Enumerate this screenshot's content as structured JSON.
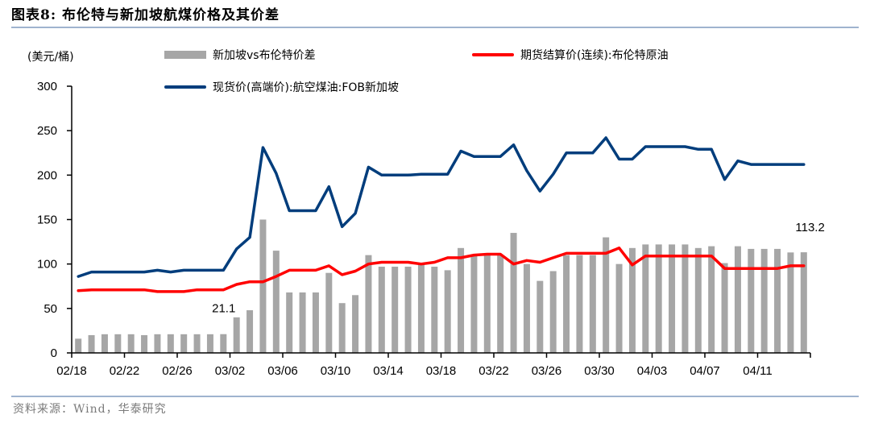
{
  "header": {
    "title": "图表8:  布伦特与新加坡航煤价格及其价差"
  },
  "footer": {
    "source": "资料来源：Wind，华泰研究"
  },
  "colors": {
    "spread_bar": "#a6a6a6",
    "jet_fuel_line": "#003d7c",
    "brent_line": "#ff0000",
    "rule": "#9fb3cf"
  },
  "chart_data": {
    "type": "bar+line",
    "title": "布伦特与新加坡航煤价格及其价差",
    "ylabel": "(美元/桶)",
    "xlabel": "",
    "ylim": [
      0,
      300
    ],
    "yticks": [
      0,
      50,
      100,
      150,
      200,
      250,
      300
    ],
    "xtick_labels": [
      "02/18",
      "02/22",
      "02/26",
      "03/02",
      "03/06",
      "03/10",
      "03/14",
      "03/18",
      "03/22",
      "03/26",
      "03/30",
      "04/03",
      "04/07",
      "04/11"
    ],
    "grid": false,
    "legend_position": "top",
    "legend": [
      {
        "name": "新加坡vs布伦特价差",
        "type": "bar",
        "color": "#a6a6a6"
      },
      {
        "name": "期货结算价(连续):布伦特原油",
        "type": "line",
        "color": "#ff0000"
      },
      {
        "name": "现货价(高端价):航空煤油:FOB新加坡",
        "type": "line",
        "color": "#003d7c"
      }
    ],
    "annotations": [
      {
        "text": "21.1",
        "index": 11
      },
      {
        "text": "113.2",
        "index": 55
      }
    ],
    "series": [
      {
        "name": "新加坡vs布伦特价差",
        "type": "bar",
        "values": [
          16,
          20,
          21,
          21,
          21,
          20,
          21,
          21,
          21,
          21,
          21,
          21.1,
          40,
          48,
          150,
          115,
          68,
          68,
          68,
          90,
          56,
          65,
          110,
          97,
          97,
          97,
          100,
          97,
          93,
          118,
          110,
          110,
          110,
          135,
          100,
          81,
          92,
          110,
          110,
          110,
          130,
          100,
          118,
          122,
          122,
          122,
          122,
          118,
          120,
          101,
          120,
          117,
          117,
          117,
          113,
          113.2
        ]
      },
      {
        "name": "期货结算价(连续):布伦特原油",
        "type": "line",
        "values": [
          70,
          71,
          71,
          71,
          71,
          71,
          69,
          69,
          69,
          71,
          71,
          71,
          77,
          80,
          80,
          86,
          93,
          93,
          93,
          98,
          88,
          92,
          100,
          102,
          102,
          102,
          100,
          102,
          107,
          107,
          110,
          111,
          111,
          100,
          104,
          102,
          107,
          112,
          112,
          112,
          112,
          118,
          99,
          109,
          109,
          109,
          109,
          109,
          109,
          95,
          95,
          95,
          95,
          95,
          98,
          98
        ]
      },
      {
        "name": "现货价(高端价):航空煤油:FOB新加坡",
        "type": "line",
        "values": [
          86,
          91,
          91,
          91,
          91,
          91,
          93,
          91,
          93,
          93,
          93,
          93,
          117,
          130,
          231,
          202,
          160,
          160,
          160,
          187,
          142,
          157,
          209,
          200,
          200,
          200,
          201,
          201,
          201,
          227,
          221,
          221,
          221,
          234,
          205,
          182,
          201,
          225,
          225,
          225,
          242,
          218,
          218,
          232,
          232,
          232,
          232,
          229,
          229,
          195,
          216,
          212,
          212,
          212,
          212,
          212
        ]
      }
    ]
  }
}
